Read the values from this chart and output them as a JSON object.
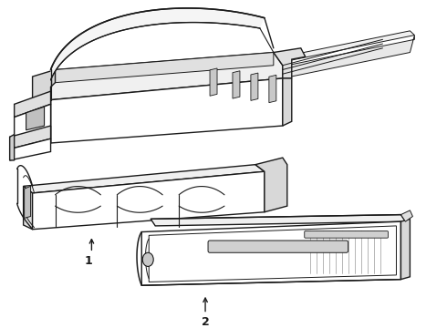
{
  "background_color": "#ffffff",
  "line_color": "#1a1a1a",
  "line_width": 1.0,
  "label_1": "1",
  "label_2": "2",
  "fig_width": 4.9,
  "fig_height": 3.6,
  "dpi": 100,
  "font_size_labels": 9,
  "gray_light": "#e8e8e8",
  "gray_mid": "#d0d0d0",
  "gray_dark": "#b0b0b0"
}
